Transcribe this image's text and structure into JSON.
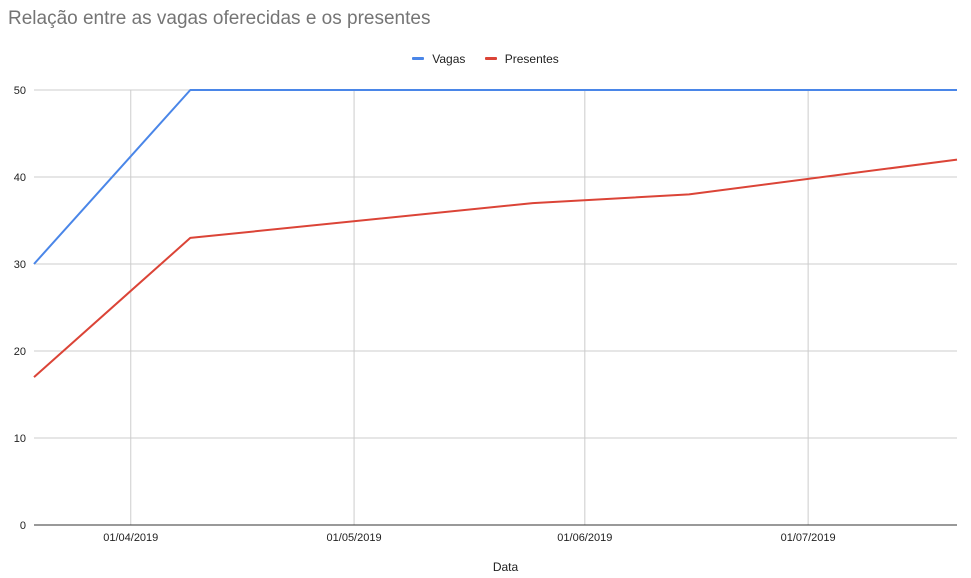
{
  "chart_data": {
    "type": "line",
    "title": "Relação entre as vagas oferecidas e os presentes",
    "xlabel": "Data",
    "ylabel": "",
    "ylim": [
      0,
      50
    ],
    "yticks": [
      0,
      10,
      20,
      30,
      40,
      50
    ],
    "x_start": "2019-03-19",
    "x_end": "2019-07-21",
    "xticks": [
      {
        "label": "01/04/2019",
        "date": "2019-04-01"
      },
      {
        "label": "01/05/2019",
        "date": "2019-05-01"
      },
      {
        "label": "01/06/2019",
        "date": "2019-06-01"
      },
      {
        "label": "01/07/2019",
        "date": "2019-07-01"
      }
    ],
    "legend_position": "top",
    "grid": true,
    "series": [
      {
        "name": "Vagas",
        "color": "#4a86e8",
        "points": [
          {
            "x": "2019-03-19",
            "y": 30
          },
          {
            "x": "2019-04-09",
            "y": 50
          },
          {
            "x": "2019-05-25",
            "y": 50
          },
          {
            "x": "2019-06-15",
            "y": 50
          },
          {
            "x": "2019-07-21",
            "y": 50
          }
        ]
      },
      {
        "name": "Presentes",
        "color": "#db4437",
        "points": [
          {
            "x": "2019-03-19",
            "y": 17
          },
          {
            "x": "2019-04-09",
            "y": 33
          },
          {
            "x": "2019-05-25",
            "y": 37
          },
          {
            "x": "2019-06-15",
            "y": 38
          },
          {
            "x": "2019-07-21",
            "y": 42
          }
        ]
      }
    ]
  }
}
